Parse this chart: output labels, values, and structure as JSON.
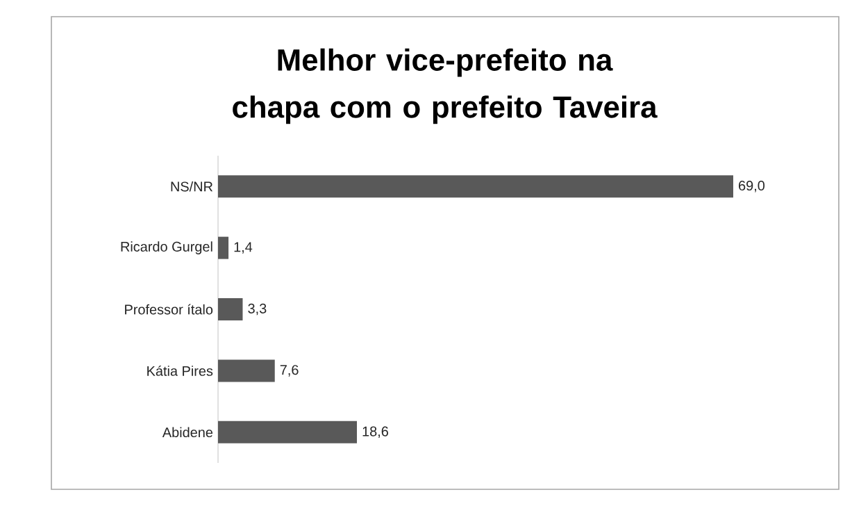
{
  "chart_data": {
    "type": "bar",
    "orientation": "horizontal",
    "title": "Melhor vice-prefeito na chapa com o prefeito Taveira",
    "categories": [
      "NS/NR",
      "Ricardo Gurgel",
      "Professor ítalo",
      "Kátia Pires",
      "Abidene"
    ],
    "values": [
      69.0,
      1.4,
      3.3,
      7.6,
      18.6
    ],
    "value_labels": [
      "69,0",
      "1,4",
      "3,3",
      "7,6",
      "18,6"
    ],
    "color": "#595959"
  }
}
